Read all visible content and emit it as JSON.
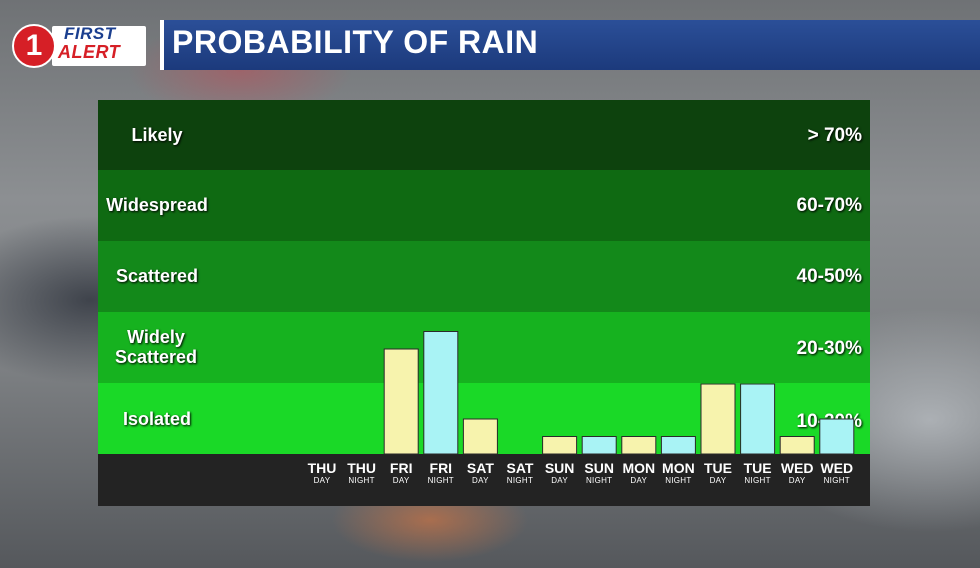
{
  "logo": {
    "numeral": "1",
    "line1": "FIRST",
    "line2": "ALERT"
  },
  "header": {
    "title": "PROBABILITY OF RAIN"
  },
  "colors": {
    "band_likely": "#0d420d",
    "band_widespread": "#0f6a12",
    "band_scattered": "#13891a",
    "band_widely_scattered": "#16b21f",
    "band_isolated": "#1ad927",
    "bar_day": "#f7f3ad",
    "bar_night": "#a9f3f5"
  },
  "bands": [
    {
      "label": "Likely",
      "range": "> 70%"
    },
    {
      "label": "Widespread",
      "range": "60-70%"
    },
    {
      "label": "Scattered",
      "range": "40-50%"
    },
    {
      "label": "Widely Scattered",
      "range": "20-30%"
    },
    {
      "label": "Isolated",
      "range": "10-20%"
    }
  ],
  "chart_data": {
    "type": "bar",
    "title": "PROBABILITY OF RAIN",
    "categories": [
      {
        "day": "THU",
        "period": "DAY"
      },
      {
        "day": "THU",
        "period": "NIGHT"
      },
      {
        "day": "FRI",
        "period": "DAY"
      },
      {
        "day": "FRI",
        "period": "NIGHT"
      },
      {
        "day": "SAT",
        "period": "DAY"
      },
      {
        "day": "SAT",
        "period": "NIGHT"
      },
      {
        "day": "SUN",
        "period": "DAY"
      },
      {
        "day": "SUN",
        "period": "NIGHT"
      },
      {
        "day": "MON",
        "period": "DAY"
      },
      {
        "day": "MON",
        "period": "NIGHT"
      },
      {
        "day": "TUE",
        "period": "DAY"
      },
      {
        "day": "TUE",
        "period": "NIGHT"
      },
      {
        "day": "WED",
        "period": "DAY"
      },
      {
        "day": "WED",
        "period": "NIGHT"
      }
    ],
    "values": [
      0,
      0,
      30,
      35,
      10,
      0,
      5,
      5,
      5,
      5,
      20,
      20,
      5,
      10
    ],
    "ylabel": "",
    "xlabel": "",
    "y_bands": [
      "Isolated",
      "Widely Scattered",
      "Scattered",
      "Widespread",
      "Likely"
    ],
    "grid": false
  }
}
